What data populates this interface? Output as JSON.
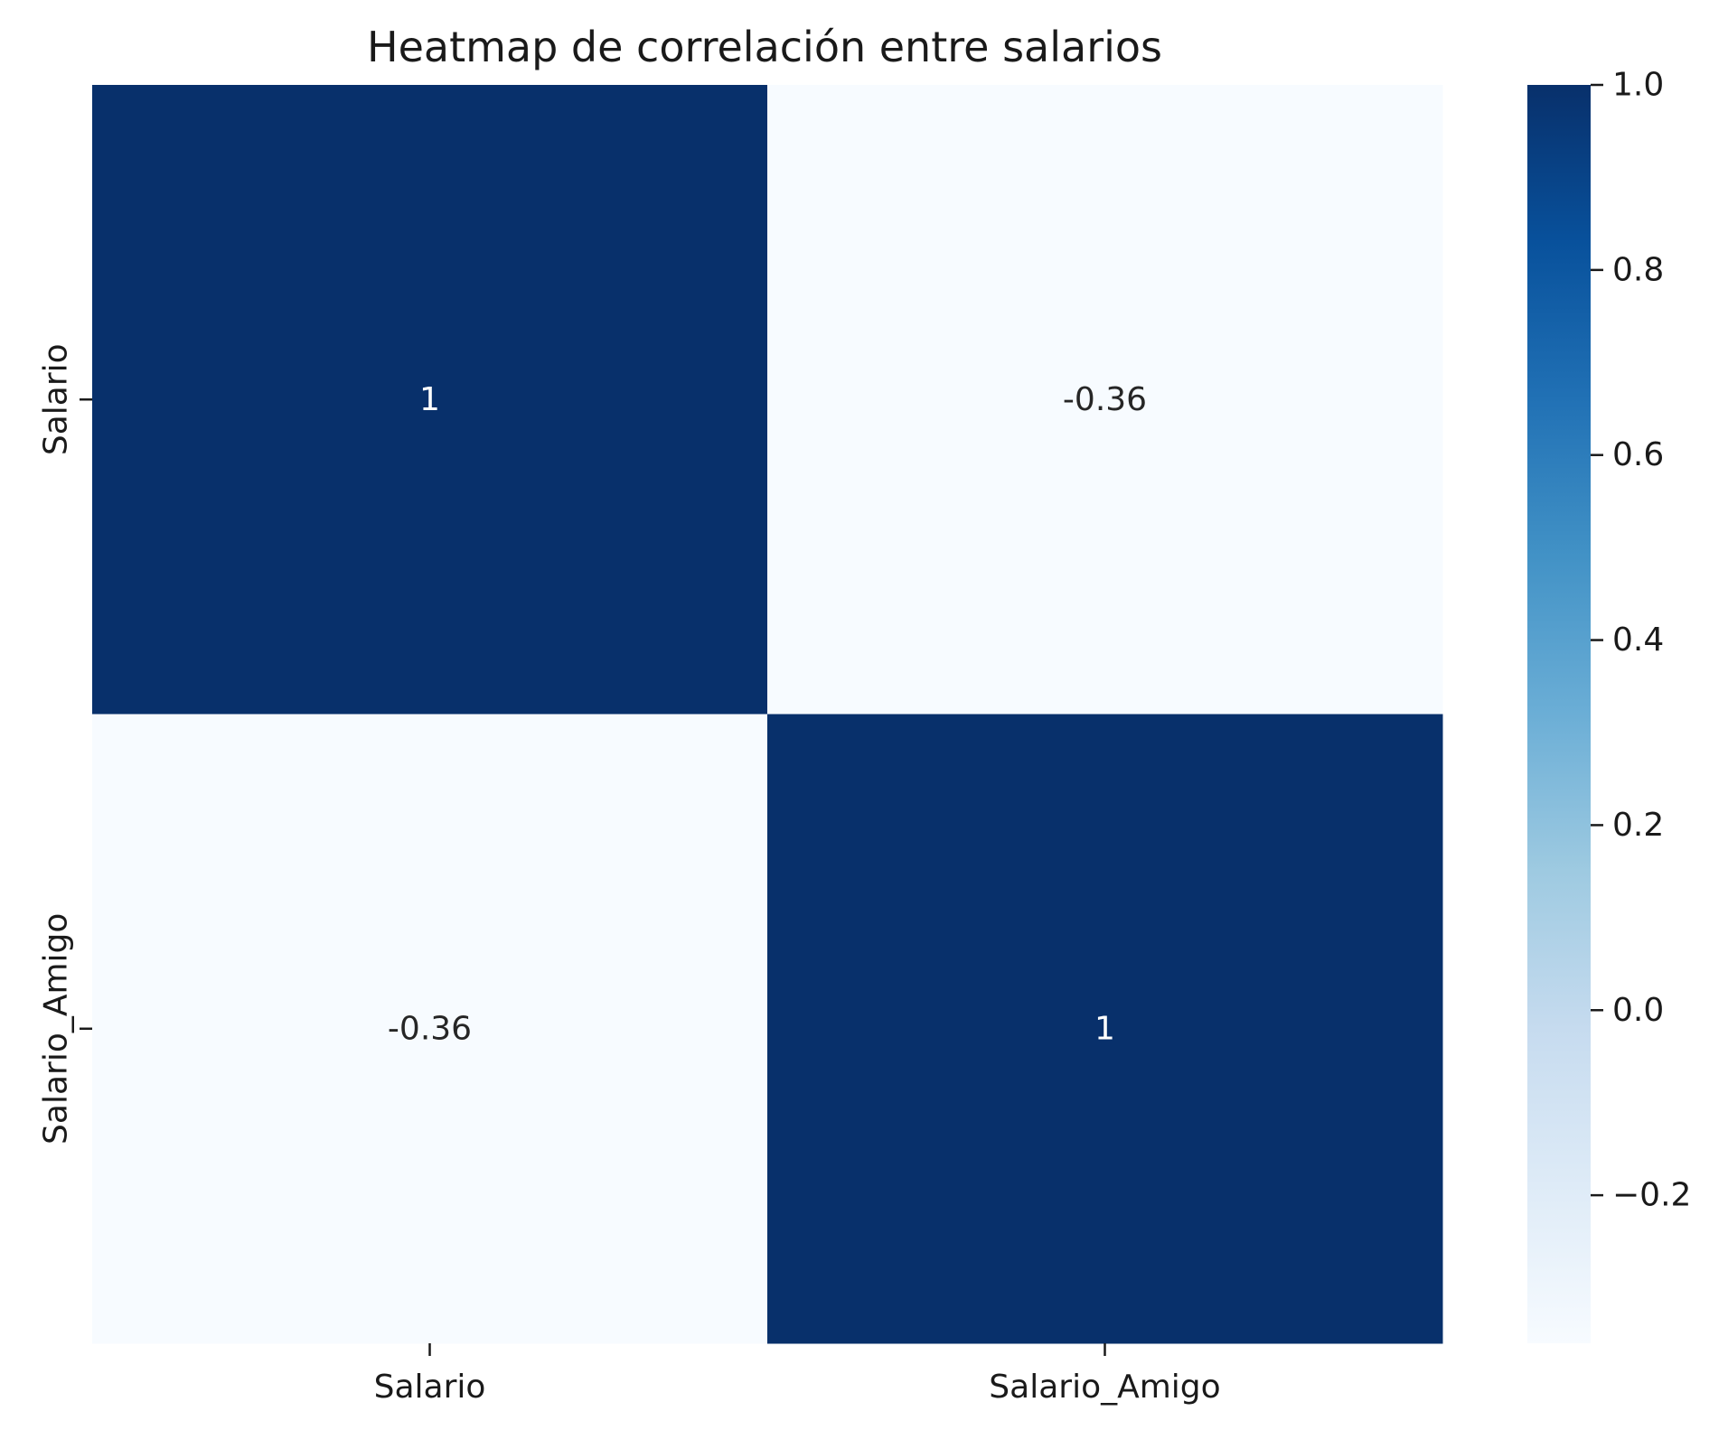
{
  "chart_data": {
    "type": "heatmap",
    "title": "Heatmap de correlación entre salarios",
    "xlabel": "",
    "ylabel": "",
    "x_categories": [
      "Salario",
      "Salario_Amigo"
    ],
    "y_categories": [
      "Salario",
      "Salario_Amigo"
    ],
    "values": [
      [
        1,
        -0.36
      ],
      [
        -0.36,
        1
      ]
    ],
    "annotations": [
      [
        "1",
        "-0.36"
      ],
      [
        "-0.36",
        "1"
      ]
    ],
    "colormap": "Blues",
    "colormap_stops": [
      "#f7fbff",
      "#deebf7",
      "#c6dbef",
      "#9ecae1",
      "#6baed6",
      "#4292c6",
      "#2171b5",
      "#08519c",
      "#08306b"
    ],
    "annotation_colors": {
      "on_dark": "#ffffff",
      "on_light": "#262626"
    },
    "vmin": -0.36,
    "vmax": 1.0,
    "colorbar": {
      "ticks": [
        1.0,
        0.8,
        0.6,
        0.4,
        0.2,
        0.0,
        -0.2
      ],
      "tick_labels": [
        "1.0",
        "0.8",
        "0.6",
        "0.4",
        "0.2",
        "0.0",
        "−0.2"
      ]
    },
    "grid": false,
    "legend": "colorbar-right"
  }
}
